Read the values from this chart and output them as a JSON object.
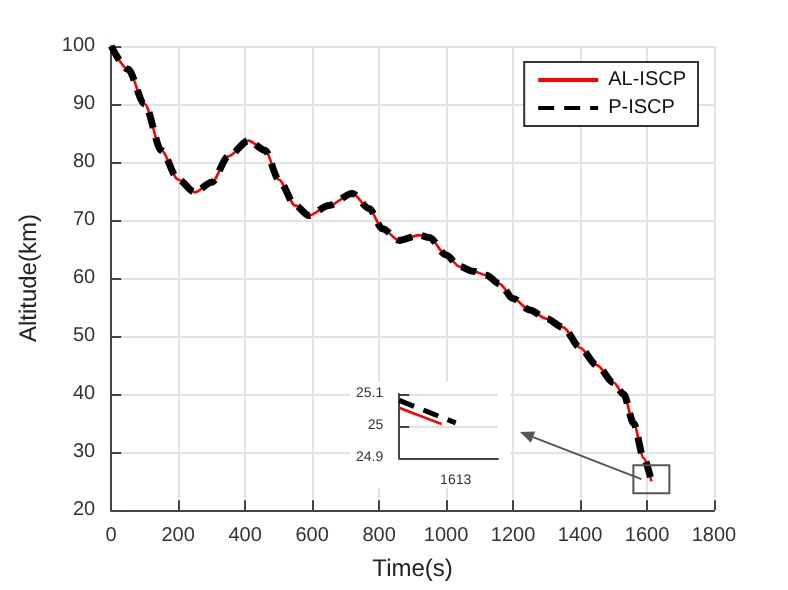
{
  "chart_data": [
    {
      "type": "line",
      "xlabel": "Time(s)",
      "ylabel": "Altitude(km)",
      "xlim": [
        0,
        1800
      ],
      "ylim": [
        20,
        100
      ],
      "xticks": [
        0,
        200,
        400,
        600,
        800,
        1000,
        1200,
        1400,
        1600,
        1800
      ],
      "yticks": [
        20,
        30,
        40,
        50,
        60,
        70,
        80,
        90,
        100
      ],
      "grid": true,
      "legend": "top right",
      "marker": "none",
      "x": [
        0,
        50,
        100,
        150,
        200,
        250,
        300,
        350,
        410,
        460,
        500,
        550,
        590,
        650,
        720,
        770,
        810,
        860,
        920,
        950,
        1000,
        1040,
        1080,
        1120,
        1160,
        1200,
        1250,
        1300,
        1350,
        1400,
        1450,
        1500,
        1530,
        1560,
        1590,
        1613
      ],
      "series": [
        {
          "name": "AL-ISCP",
          "color": "#ff0000",
          "line_style": "solid",
          "values": [
            100,
            96,
            90,
            82,
            77,
            74.8,
            76.5,
            81,
            83.7,
            82,
            77,
            72.5,
            70.8,
            72.5,
            74.6,
            72,
            68.5,
            66.5,
            67.4,
            67,
            64,
            62,
            61.2,
            60.5,
            59,
            56.5,
            54.5,
            53,
            51.5,
            48,
            45,
            42,
            40,
            35,
            29,
            25
          ]
        },
        {
          "name": "P-ISCP",
          "color": "#000000",
          "line_style": "dashed",
          "values": [
            100,
            96,
            90,
            82,
            77,
            74.8,
            76.5,
            81,
            83.7,
            82,
            77,
            72.5,
            70.8,
            72.5,
            74.6,
            72,
            68.5,
            66.5,
            67.4,
            67,
            64,
            62,
            61.2,
            60.5,
            59,
            56.5,
            54.5,
            53,
            51.5,
            48,
            45,
            42,
            40,
            35,
            29,
            25
          ]
        }
      ]
    },
    {
      "type": "line",
      "categories": [
        null,
        null,
        null,
        null,
        "1613",
        null,
        null,
        null
      ],
      "ylim": [
        24.9,
        25.1
      ],
      "yticks": [
        24.9,
        25,
        25.1
      ],
      "grid": true,
      "marker": "none",
      "series": [
        {
          "color": "#ff0000",
          "line_style": "solid",
          "values": [
            25.057,
            25.04,
            25.023,
            25.006,
            null,
            null,
            null,
            null
          ]
        },
        {
          "color": "#000000",
          "line_style": "dashed",
          "values": [
            25.08,
            25.062,
            25.045,
            25.027,
            25.01,
            null,
            null,
            null
          ]
        }
      ]
    }
  ]
}
